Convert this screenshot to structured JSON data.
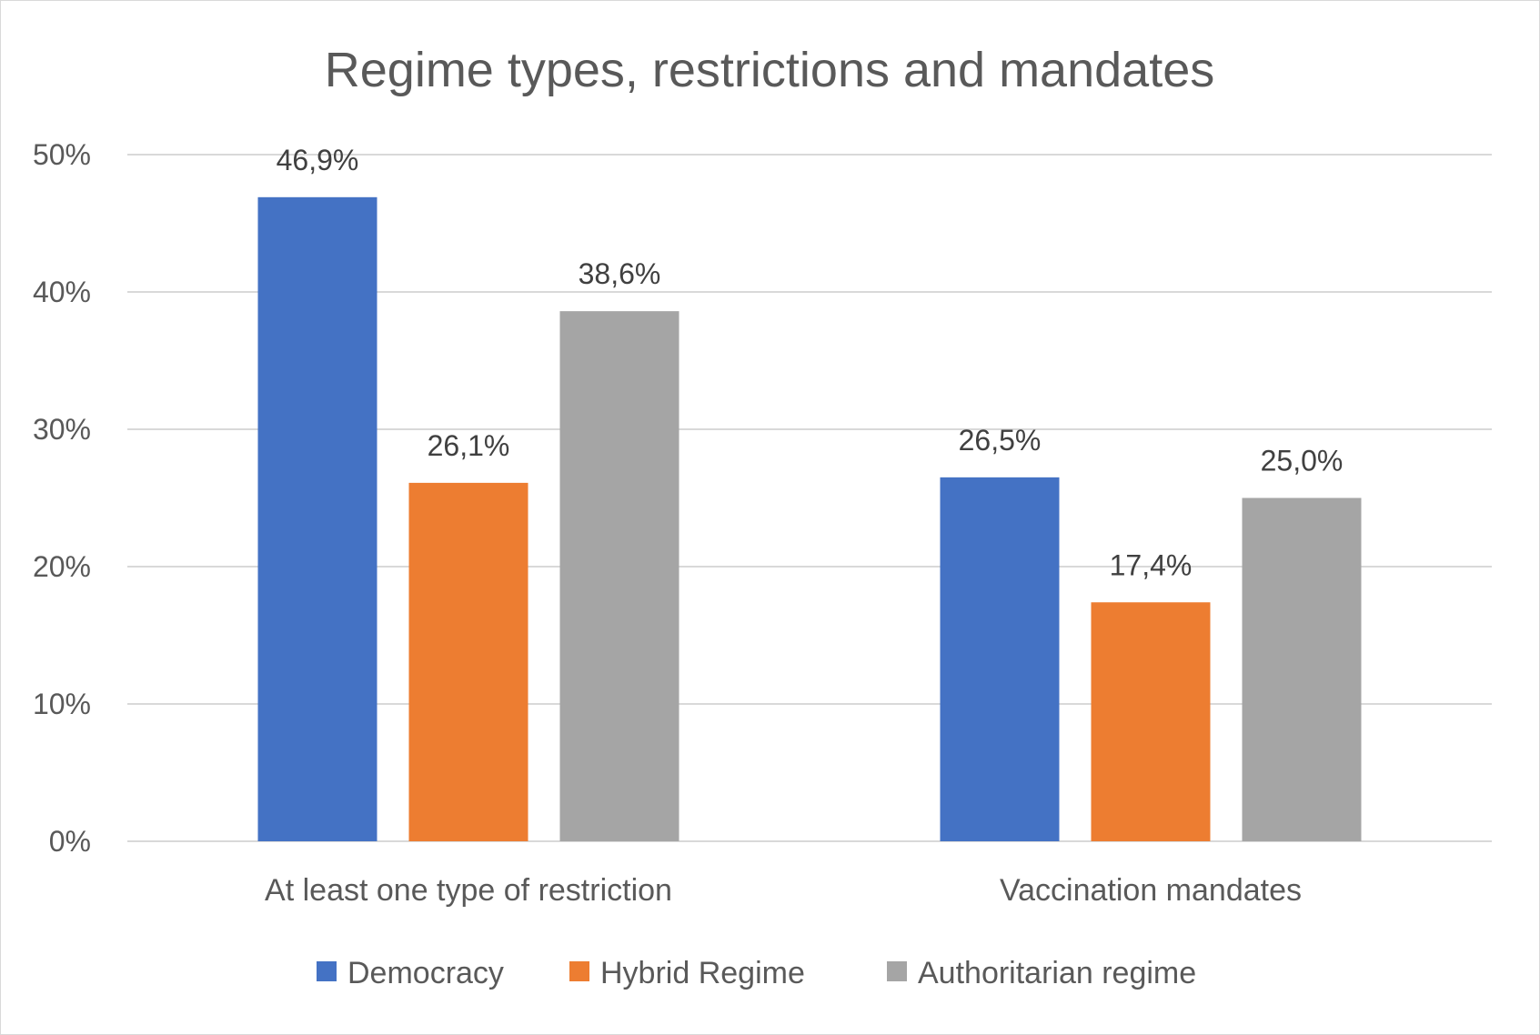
{
  "chart_data": {
    "type": "bar",
    "title": "Regime types, restrictions and mandates",
    "xlabel": "",
    "ylabel": "",
    "categories": [
      "At least one type of restriction",
      "Vaccination mandates"
    ],
    "series": [
      {
        "name": "Democracy",
        "color": "#4472c4",
        "values": [
          46.9,
          26.5
        ],
        "labels": [
          "46,9%",
          "26,5%"
        ]
      },
      {
        "name": "Hybrid Regime",
        "color": "#ed7d31",
        "values": [
          26.1,
          17.4
        ],
        "labels": [
          "26,1%",
          "17,4%"
        ]
      },
      {
        "name": "Authoritarian regime",
        "color": "#a5a5a5",
        "values": [
          38.6,
          25.0
        ],
        "labels": [
          "38,6%",
          "25,0%"
        ]
      }
    ],
    "ylim": [
      0,
      50
    ],
    "yticks": [
      0,
      10,
      20,
      30,
      40,
      50
    ],
    "ytick_labels": [
      "0%",
      "10%",
      "20%",
      "30%",
      "40%",
      "50%"
    ],
    "grid": true,
    "legend_position": "bottom",
    "gridline_color": "#d9d9d9"
  }
}
